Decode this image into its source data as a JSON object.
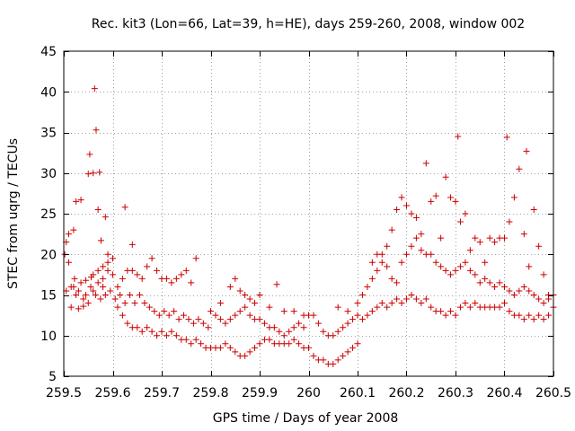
{
  "chart_data": {
    "type": "scatter",
    "title": "Rec. kit3 (Lon=66, Lat=39, h=HE), days 259-260, 2008, window 002",
    "xlabel": "GPS time / Days of year 2008",
    "ylabel": "STEC from uqrg / TECUs",
    "xlim": [
      259.5,
      260.5
    ],
    "ylim": [
      5,
      45
    ],
    "xticks": [
      259.5,
      259.6,
      259.7,
      259.8,
      259.9,
      260,
      260.1,
      260.2,
      260.3,
      260.4,
      260.5
    ],
    "xtick_labels": [
      "259.5",
      "259.6",
      "259.7",
      "259.8",
      "259.9",
      "260",
      "260.1",
      "260.2",
      "260.3",
      "260.4",
      "260.5"
    ],
    "yticks": [
      5,
      10,
      15,
      20,
      25,
      30,
      35,
      40,
      45
    ],
    "ytick_labels": [
      "5",
      "10",
      "15",
      "20",
      "25",
      "30",
      "35",
      "40",
      "45"
    ],
    "grid": true,
    "marker": "+",
    "color": "#cc0000",
    "series": [
      {
        "name": "STEC",
        "points": [
          [
            259.502,
            20.0
          ],
          [
            259.505,
            21.5
          ],
          [
            259.51,
            22.5
          ],
          [
            259.515,
            13.5
          ],
          [
            259.52,
            23.0
          ],
          [
            259.522,
            17.0
          ],
          [
            259.525,
            26.5
          ],
          [
            259.53,
            13.3
          ],
          [
            259.535,
            26.7
          ],
          [
            259.54,
            13.6
          ],
          [
            259.545,
            16.8
          ],
          [
            259.55,
            29.9
          ],
          [
            259.553,
            32.3
          ],
          [
            259.556,
            17.2
          ],
          [
            259.56,
            30.0
          ],
          [
            259.563,
            40.4
          ],
          [
            259.566,
            35.3
          ],
          [
            259.57,
            25.5
          ],
          [
            259.573,
            30.1
          ],
          [
            259.576,
            21.7
          ],
          [
            259.58,
            16.0
          ],
          [
            259.585,
            24.6
          ],
          [
            259.59,
            20.0
          ],
          [
            259.51,
            19.0
          ],
          [
            259.52,
            16.0
          ],
          [
            259.53,
            15.5
          ],
          [
            259.54,
            14.5
          ],
          [
            259.55,
            14.0
          ],
          [
            259.56,
            15.5
          ],
          [
            259.57,
            16.5
          ],
          [
            259.58,
            17.0
          ],
          [
            259.59,
            18.0
          ],
          [
            259.6,
            17.5
          ],
          [
            259.61,
            16.0
          ],
          [
            259.62,
            17.0
          ],
          [
            259.63,
            18.0
          ],
          [
            259.64,
            18.0
          ],
          [
            259.65,
            17.5
          ],
          [
            259.66,
            17.0
          ],
          [
            259.67,
            18.5
          ],
          [
            259.68,
            19.5
          ],
          [
            259.69,
            18.0
          ],
          [
            259.7,
            17.0
          ],
          [
            259.71,
            17.0
          ],
          [
            259.72,
            16.5
          ],
          [
            259.73,
            17.0
          ],
          [
            259.74,
            17.5
          ],
          [
            259.75,
            18.0
          ],
          [
            259.76,
            16.5
          ],
          [
            259.77,
            19.5
          ],
          [
            259.505,
            15.5
          ],
          [
            259.515,
            16.0
          ],
          [
            259.525,
            15.0
          ],
          [
            259.535,
            16.5
          ],
          [
            259.545,
            15.0
          ],
          [
            259.555,
            16.0
          ],
          [
            259.565,
            15.0
          ],
          [
            259.575,
            14.5
          ],
          [
            259.585,
            15.0
          ],
          [
            259.595,
            15.5
          ],
          [
            259.605,
            14.5
          ],
          [
            259.615,
            15.0
          ],
          [
            259.625,
            14.0
          ],
          [
            259.635,
            15.0
          ],
          [
            259.645,
            14.0
          ],
          [
            259.655,
            15.0
          ],
          [
            259.665,
            14.0
          ],
          [
            259.675,
            13.5
          ],
          [
            259.685,
            13.0
          ],
          [
            259.695,
            12.5
          ],
          [
            259.705,
            13.0
          ],
          [
            259.715,
            12.5
          ],
          [
            259.725,
            13.0
          ],
          [
            259.735,
            12.0
          ],
          [
            259.745,
            12.5
          ],
          [
            259.755,
            12.0
          ],
          [
            259.765,
            11.5
          ],
          [
            259.775,
            12.0
          ],
          [
            259.785,
            11.5
          ],
          [
            259.795,
            11.0
          ],
          [
            259.61,
            13.5
          ],
          [
            259.62,
            12.5
          ],
          [
            259.63,
            11.5
          ],
          [
            259.64,
            11.0
          ],
          [
            259.65,
            11.0
          ],
          [
            259.66,
            10.5
          ],
          [
            259.67,
            11.0
          ],
          [
            259.68,
            10.5
          ],
          [
            259.69,
            10.0
          ],
          [
            259.7,
            10.5
          ],
          [
            259.71,
            10.0
          ],
          [
            259.72,
            10.5
          ],
          [
            259.73,
            10.0
          ],
          [
            259.74,
            9.5
          ],
          [
            259.75,
            9.5
          ],
          [
            259.76,
            9.0
          ],
          [
            259.77,
            9.5
          ],
          [
            259.78,
            9.0
          ],
          [
            259.79,
            8.5
          ],
          [
            259.8,
            8.5
          ],
          [
            259.81,
            8.5
          ],
          [
            259.82,
            8.5
          ],
          [
            259.83,
            9.0
          ],
          [
            259.84,
            8.5
          ],
          [
            259.85,
            8.0
          ],
          [
            259.86,
            7.5
          ],
          [
            259.87,
            7.5
          ],
          [
            259.88,
            8.0
          ],
          [
            259.89,
            8.5
          ],
          [
            259.9,
            9.0
          ],
          [
            259.56,
            17.5
          ],
          [
            259.57,
            18.0
          ],
          [
            259.58,
            18.5
          ],
          [
            259.59,
            19.0
          ],
          [
            259.6,
            19.5
          ],
          [
            259.625,
            25.8
          ],
          [
            259.64,
            21.2
          ],
          [
            259.8,
            13.0
          ],
          [
            259.81,
            12.5
          ],
          [
            259.82,
            12.0
          ],
          [
            259.83,
            11.5
          ],
          [
            259.84,
            12.0
          ],
          [
            259.85,
            12.5
          ],
          [
            259.86,
            13.0
          ],
          [
            259.87,
            13.5
          ],
          [
            259.88,
            12.5
          ],
          [
            259.89,
            12.0
          ],
          [
            259.9,
            12.0
          ],
          [
            259.91,
            11.5
          ],
          [
            259.92,
            11.0
          ],
          [
            259.93,
            11.0
          ],
          [
            259.94,
            10.5
          ],
          [
            259.95,
            10.0
          ],
          [
            259.96,
            10.5
          ],
          [
            259.97,
            11.0
          ],
          [
            259.98,
            11.5
          ],
          [
            259.99,
            11.0
          ],
          [
            260.0,
            12.5
          ],
          [
            259.82,
            14.0
          ],
          [
            259.84,
            16.0
          ],
          [
            259.85,
            17.0
          ],
          [
            259.86,
            15.5
          ],
          [
            259.87,
            15.0
          ],
          [
            259.88,
            14.5
          ],
          [
            259.89,
            14.0
          ],
          [
            259.9,
            15.0
          ],
          [
            259.92,
            13.5
          ],
          [
            259.935,
            16.3
          ],
          [
            259.95,
            13.0
          ],
          [
            259.97,
            13.0
          ],
          [
            259.99,
            12.5
          ],
          [
            259.91,
            9.5
          ],
          [
            259.92,
            9.5
          ],
          [
            259.93,
            9.0
          ],
          [
            259.94,
            9.0
          ],
          [
            259.95,
            9.0
          ],
          [
            259.96,
            9.0
          ],
          [
            259.97,
            9.5
          ],
          [
            259.98,
            9.0
          ],
          [
            259.99,
            8.5
          ],
          [
            260.0,
            8.5
          ],
          [
            260.01,
            7.5
          ],
          [
            260.02,
            7.0
          ],
          [
            260.03,
            7.0
          ],
          [
            260.04,
            6.5
          ],
          [
            260.05,
            6.5
          ],
          [
            260.06,
            7.0
          ],
          [
            260.07,
            7.5
          ],
          [
            260.08,
            8.0
          ],
          [
            260.09,
            8.5
          ],
          [
            260.1,
            9.0
          ],
          [
            260.01,
            12.5
          ],
          [
            260.02,
            11.5
          ],
          [
            260.03,
            10.5
          ],
          [
            260.04,
            10.0
          ],
          [
            260.05,
            10.0
          ],
          [
            260.06,
            10.5
          ],
          [
            260.07,
            11.0
          ],
          [
            260.08,
            11.5
          ],
          [
            260.09,
            12.0
          ],
          [
            260.1,
            12.5
          ],
          [
            260.06,
            13.5
          ],
          [
            260.08,
            13.0
          ],
          [
            260.1,
            14.0
          ],
          [
            260.11,
            15.0
          ],
          [
            260.12,
            16.0
          ],
          [
            260.13,
            17.0
          ],
          [
            260.14,
            18.0
          ],
          [
            260.15,
            19.0
          ],
          [
            260.16,
            21.0
          ],
          [
            260.17,
            23.0
          ],
          [
            260.18,
            25.5
          ],
          [
            260.19,
            27.0
          ],
          [
            260.2,
            26.0
          ],
          [
            260.21,
            25.0
          ],
          [
            260.22,
            24.5
          ],
          [
            260.23,
            22.5
          ],
          [
            260.24,
            31.2
          ],
          [
            260.25,
            26.5
          ],
          [
            260.26,
            27.2
          ],
          [
            260.27,
            22.0
          ],
          [
            260.28,
            29.5
          ],
          [
            260.29,
            27.0
          ],
          [
            260.3,
            26.5
          ],
          [
            260.305,
            34.5
          ],
          [
            260.31,
            24.0
          ],
          [
            260.32,
            25.0
          ],
          [
            260.33,
            20.5
          ],
          [
            260.34,
            22.0
          ],
          [
            260.35,
            21.5
          ],
          [
            260.36,
            19.0
          ],
          [
            260.37,
            22.0
          ],
          [
            260.38,
            21.5
          ],
          [
            260.39,
            22.0
          ],
          [
            260.4,
            22.0
          ],
          [
            260.405,
            34.4
          ],
          [
            260.41,
            24.0
          ],
          [
            260.42,
            27.0
          ],
          [
            260.43,
            30.5
          ],
          [
            260.44,
            22.5
          ],
          [
            260.445,
            32.7
          ],
          [
            260.45,
            18.5
          ],
          [
            260.46,
            25.5
          ],
          [
            260.47,
            21.0
          ],
          [
            260.48,
            17.5
          ],
          [
            260.49,
            15.0
          ],
          [
            260.5,
            15.0
          ],
          [
            260.11,
            12.0
          ],
          [
            260.12,
            12.5
          ],
          [
            260.13,
            13.0
          ],
          [
            260.14,
            13.5
          ],
          [
            260.15,
            14.0
          ],
          [
            260.16,
            13.5
          ],
          [
            260.17,
            14.0
          ],
          [
            260.18,
            14.5
          ],
          [
            260.19,
            14.0
          ],
          [
            260.2,
            14.5
          ],
          [
            260.21,
            15.0
          ],
          [
            260.22,
            14.5
          ],
          [
            260.23,
            14.0
          ],
          [
            260.24,
            14.5
          ],
          [
            260.25,
            13.5
          ],
          [
            260.26,
            13.0
          ],
          [
            260.27,
            13.0
          ],
          [
            260.28,
            12.5
          ],
          [
            260.29,
            13.0
          ],
          [
            260.3,
            12.5
          ],
          [
            260.31,
            13.5
          ],
          [
            260.32,
            14.0
          ],
          [
            260.33,
            13.5
          ],
          [
            260.34,
            14.0
          ],
          [
            260.35,
            13.5
          ],
          [
            260.36,
            13.5
          ],
          [
            260.37,
            13.5
          ],
          [
            260.38,
            13.5
          ],
          [
            260.39,
            13.5
          ],
          [
            260.4,
            14.0
          ],
          [
            260.41,
            13.0
          ],
          [
            260.42,
            12.5
          ],
          [
            260.43,
            12.5
          ],
          [
            260.44,
            12.0
          ],
          [
            260.45,
            12.5
          ],
          [
            260.46,
            12.0
          ],
          [
            260.47,
            12.5
          ],
          [
            260.48,
            12.0
          ],
          [
            260.49,
            12.5
          ],
          [
            260.13,
            19.0
          ],
          [
            260.14,
            20.0
          ],
          [
            260.15,
            20.0
          ],
          [
            260.16,
            18.5
          ],
          [
            260.17,
            17.0
          ],
          [
            260.18,
            16.5
          ],
          [
            260.19,
            19.0
          ],
          [
            260.2,
            20.0
          ],
          [
            260.21,
            21.0
          ],
          [
            260.22,
            22.0
          ],
          [
            260.23,
            20.5
          ],
          [
            260.24,
            20.0
          ],
          [
            260.25,
            20.0
          ],
          [
            260.26,
            19.0
          ],
          [
            260.27,
            18.5
          ],
          [
            260.28,
            18.0
          ],
          [
            260.29,
            17.5
          ],
          [
            260.3,
            18.0
          ],
          [
            260.31,
            18.5
          ],
          [
            260.32,
            19.0
          ],
          [
            260.33,
            18.0
          ],
          [
            260.34,
            17.5
          ],
          [
            260.35,
            16.5
          ],
          [
            260.36,
            17.0
          ],
          [
            260.37,
            16.5
          ],
          [
            260.38,
            16.0
          ],
          [
            260.39,
            16.5
          ],
          [
            260.4,
            16.0
          ],
          [
            260.41,
            15.5
          ],
          [
            260.42,
            15.0
          ],
          [
            260.43,
            15.5
          ],
          [
            260.44,
            16.0
          ],
          [
            260.45,
            15.5
          ],
          [
            260.46,
            15.0
          ],
          [
            260.47,
            14.5
          ],
          [
            260.48,
            14.0
          ],
          [
            260.49,
            14.5
          ],
          [
            260.5,
            13.5
          ]
        ]
      }
    ]
  }
}
